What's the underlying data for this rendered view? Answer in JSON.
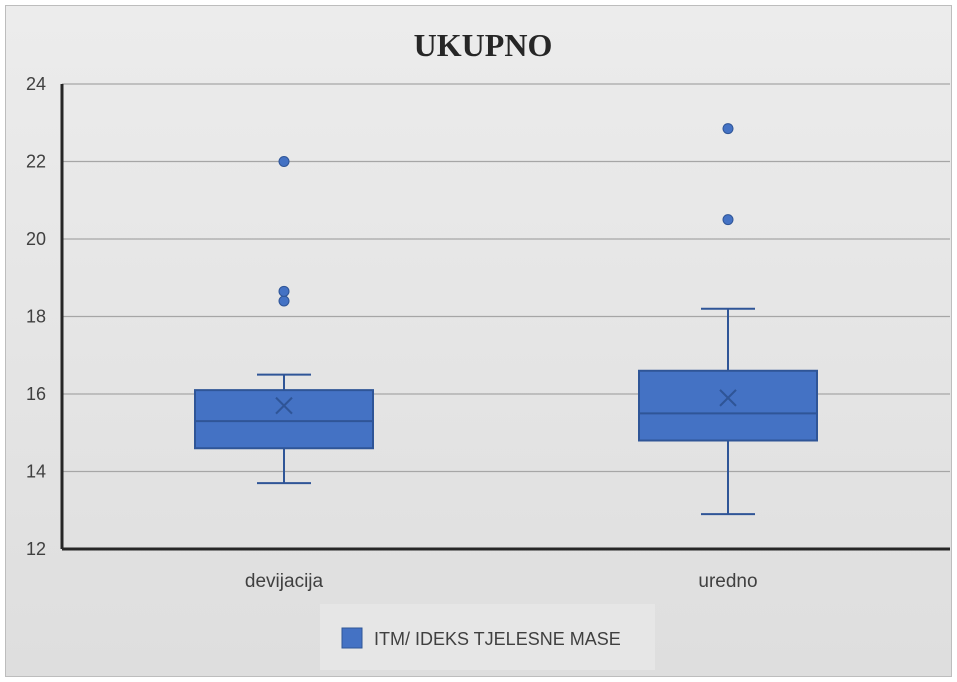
{
  "chart_data": {
    "type": "box",
    "title": "UKUPNO",
    "ylim": [
      12,
      24
    ],
    "yticks": [
      12,
      14,
      16,
      18,
      20,
      22,
      24
    ],
    "grid": true,
    "legend_position": "bottom",
    "categories": [
      "devijacija",
      "uredno"
    ],
    "series": [
      {
        "name": "ITM/ IDEKS TJELESNE MASE",
        "color": "#4472c4",
        "stroke": "#2f5597",
        "boxes": [
          {
            "category": "devijacija",
            "min": 13.7,
            "q1": 14.6,
            "median": 15.3,
            "q3": 16.1,
            "max": 16.5,
            "mean": 15.7,
            "outliers": [
              18.4,
              18.65,
              22.0
            ]
          },
          {
            "category": "uredno",
            "min": 12.9,
            "q1": 14.8,
            "median": 15.5,
            "q3": 16.6,
            "max": 18.2,
            "mean": 15.9,
            "outliers": [
              20.5,
              22.85
            ]
          }
        ]
      }
    ]
  }
}
